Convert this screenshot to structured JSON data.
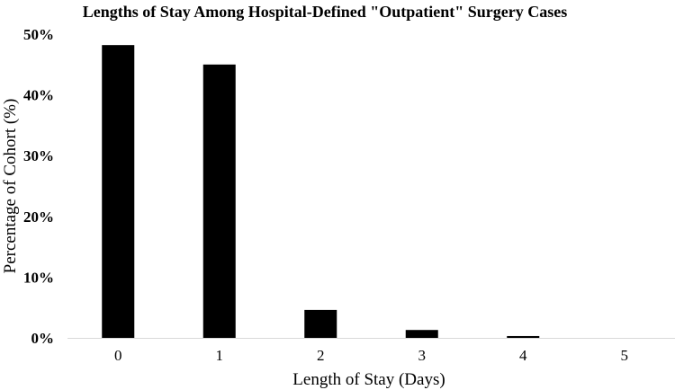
{
  "chart_data": {
    "type": "bar",
    "title": "Lengths of Stay Among Hospital-Defined \"Outpatient\" Surgery Cases",
    "xlabel": "Length of Stay (Days)",
    "ylabel": "Percentage of Cohort (%)",
    "categories": [
      "0",
      "1",
      "2",
      "3",
      "4",
      "5"
    ],
    "values": [
      48.2,
      45.0,
      4.6,
      1.3,
      0.3,
      0.0
    ],
    "ylim": [
      0,
      50
    ],
    "yticks": [
      0,
      10,
      20,
      30,
      40,
      50
    ],
    "ytick_labels": [
      "0%",
      "10%",
      "20%",
      "30%",
      "40%",
      "50%"
    ],
    "bar_color": "#000000",
    "axis_color": "#d9d9d9",
    "grid": false,
    "legend": "none"
  }
}
